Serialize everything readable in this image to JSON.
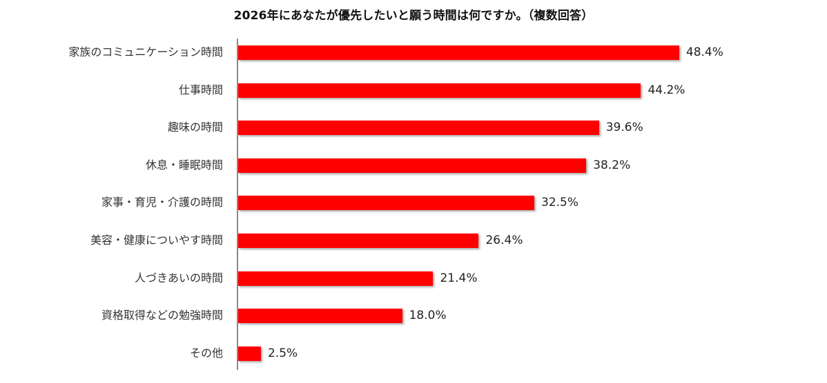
{
  "chart_data": {
    "type": "bar",
    "orientation": "horizontal",
    "title": "2026年にあなたが優先したいと願う時間は何ですか。（複数回答）",
    "xlabel": "",
    "ylabel": "",
    "categories": [
      "家族のコミュニケーション時間",
      "仕事時間",
      "趣味の時間",
      "休息・睡眠時間",
      "家事・育児・介護の時間",
      "美容・健康についやす時間",
      "人づきあいの時間",
      "資格取得などの勉強時間",
      "その他"
    ],
    "values": [
      48.4,
      44.2,
      39.6,
      38.2,
      32.5,
      26.4,
      21.4,
      18.0,
      2.5
    ],
    "value_labels": [
      "48.4%",
      "44.2%",
      "39.6%",
      "38.2%",
      "32.5%",
      "26.4%",
      "21.4%",
      "18.0%",
      "2.5%"
    ],
    "unit": "%",
    "grid": false,
    "legend": null,
    "bar_color": "#ff0000"
  },
  "title": "2026年にあなたが優先したいと願う時間は何ですか。（複数回答）",
  "rows": [
    {
      "label": "家族のコミュニケーション時間",
      "value": "48.4%"
    },
    {
      "label": "仕事時間",
      "value": "44.2%"
    },
    {
      "label": "趣味の時間",
      "value": "39.6%"
    },
    {
      "label": "休息・睡眠時間",
      "value": "38.2%"
    },
    {
      "label": "家事・育児・介護の時間",
      "value": "32.5%"
    },
    {
      "label": "美容・健康についやす時間",
      "value": "26.4%"
    },
    {
      "label": "人づきあいの時間",
      "value": "21.4%"
    },
    {
      "label": "資格取得などの勉強時間",
      "value": "18.0%"
    },
    {
      "label": "その他",
      "value": "2.5%"
    }
  ]
}
